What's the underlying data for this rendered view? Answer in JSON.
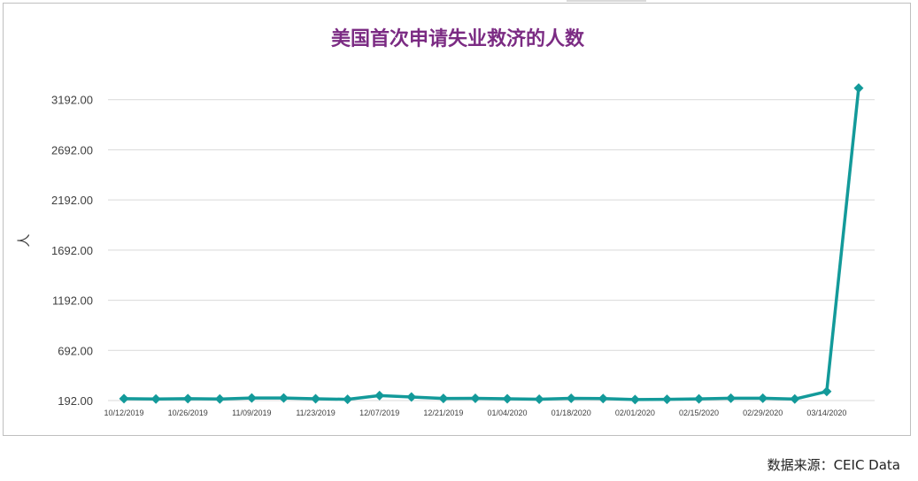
{
  "title": "美国首次申请失业救济的人数",
  "source": "数据来源：CEIC Data",
  "colors": {
    "title": "#7b2b83",
    "series": "#139a9a",
    "grid": "#d9d9d9"
  },
  "chart_data": {
    "type": "line",
    "title": "美国首次申请失业救济的人数",
    "ylabel": "人",
    "xlabel": "",
    "ylim": [
      192,
      3392
    ],
    "yticks": [
      192,
      692,
      1192,
      1692,
      2192,
      2692,
      3192
    ],
    "ytick_labels": [
      "192.00",
      "692.00",
      "1192.00",
      "1692.00",
      "2192.00",
      "2692.00",
      "3192.00"
    ],
    "xtick_labels": [
      "10/12/2019",
      "10/26/2019",
      "11/09/2019",
      "11/23/2019",
      "12/07/2019",
      "12/21/2019",
      "01/04/2020",
      "01/18/2020",
      "02/01/2020",
      "02/15/2020",
      "02/29/2020",
      "03/14/2020"
    ],
    "grid": true,
    "legend": "none",
    "x": [
      "10/12/2019",
      "10/19/2019",
      "10/26/2019",
      "11/02/2019",
      "11/09/2019",
      "11/16/2019",
      "11/23/2019",
      "11/30/2019",
      "12/07/2019",
      "12/14/2019",
      "12/21/2019",
      "12/28/2019",
      "01/04/2020",
      "01/11/2020",
      "01/18/2020",
      "01/25/2020",
      "02/01/2020",
      "02/08/2020",
      "02/15/2020",
      "02/22/2020",
      "02/29/2020",
      "03/07/2020",
      "03/14/2020",
      "03/21/2020"
    ],
    "series": [
      {
        "values": [
          211,
          207,
          211,
          207,
          217,
          217,
          210,
          204,
          242,
          227,
          213,
          214,
          210,
          205,
          214,
          212,
          202,
          204,
          208,
          215,
          215,
          207,
          282,
          3307
        ]
      }
    ]
  }
}
